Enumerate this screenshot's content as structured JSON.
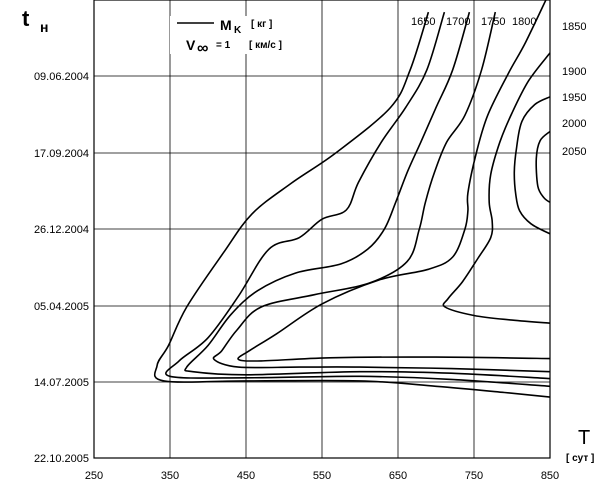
{
  "chart_data": {
    "type": "line",
    "xlabel": "T",
    "xunit": "[ сут ]",
    "ylabel": "t",
    "ylabel_sub": "н",
    "xlim": [
      250,
      850
    ],
    "x_ticks": [
      250,
      350,
      450,
      550,
      650,
      750,
      850
    ],
    "y_ticks": [
      "09.06.2004",
      "17.09.2004",
      "26.12.2004",
      "05.04.2005",
      "14.07.2005",
      "22.10.2005"
    ],
    "grid": true,
    "legend": {
      "line_label": "M",
      "line_label_sub": "K",
      "line_unit": "[ кг ]",
      "param_label": "V",
      "param_symbol": "∞",
      "param_value": "= 1",
      "param_unit": "[ км/с ]"
    },
    "level_labels": [
      "1650",
      "1700",
      "1750",
      "1800",
      "1850",
      "1900",
      "1950",
      "2000",
      "2050"
    ],
    "series": [
      {
        "name": "1650",
        "points": [
          [
            690,
            "2004-03-18"
          ],
          [
            666,
            "2004-06-01"
          ],
          [
            640,
            "2004-07-20"
          ],
          [
            568,
            "2004-09-17"
          ],
          [
            510,
            "2004-10-26"
          ],
          [
            458,
            "2004-12-05"
          ],
          [
            420,
            "2005-01-25"
          ],
          [
            372,
            "2005-04-05"
          ],
          [
            348,
            "2005-05-25"
          ],
          [
            333,
            "2005-06-20"
          ],
          [
            342,
            "2005-07-10"
          ],
          [
            450,
            "2005-07-10"
          ],
          [
            600,
            "2005-07-10"
          ],
          [
            700,
            "2005-07-17"
          ],
          [
            790,
            "2005-07-25"
          ],
          [
            850,
            "2005-07-31"
          ]
        ]
      },
      {
        "name": "1700",
        "points": [
          [
            711,
            "2004-03-18"
          ],
          [
            688,
            "2004-06-01"
          ],
          [
            660,
            "2004-07-20"
          ],
          [
            628,
            "2004-09-03"
          ],
          [
            598,
            "2004-10-25"
          ],
          [
            582,
            "2004-11-30"
          ],
          [
            550,
            "2004-12-12"
          ],
          [
            520,
            "2005-01-05"
          ],
          [
            480,
            "2005-01-20"
          ],
          [
            440,
            "2005-03-22"
          ],
          [
            400,
            "2005-05-15"
          ],
          [
            362,
            "2005-06-14"
          ],
          [
            350,
            "2005-07-04"
          ],
          [
            450,
            "2005-07-06"
          ],
          [
            600,
            "2005-07-04"
          ],
          [
            720,
            "2005-07-08"
          ],
          [
            850,
            "2005-07-17"
          ]
        ]
      },
      {
        "name": "1750",
        "points": [
          [
            744,
            "2004-03-18"
          ],
          [
            722,
            "2004-06-01"
          ],
          [
            700,
            "2004-07-20"
          ],
          [
            680,
            "2004-09-03"
          ],
          [
            663,
            "2004-10-10"
          ],
          [
            647,
            "2004-11-20"
          ],
          [
            632,
            "2004-12-25"
          ],
          [
            610,
            "2005-01-20"
          ],
          [
            575,
            "2005-02-08"
          ],
          [
            515,
            "2005-02-20"
          ],
          [
            465,
            "2005-03-15"
          ],
          [
            430,
            "2005-04-15"
          ],
          [
            400,
            "2005-05-25"
          ],
          [
            372,
            "2005-06-22"
          ],
          [
            380,
            "2005-06-28"
          ],
          [
            450,
            "2005-07-02"
          ],
          [
            600,
            "2005-06-28"
          ],
          [
            720,
            "2005-06-30"
          ],
          [
            850,
            "2005-07-07"
          ]
        ]
      },
      {
        "name": "1800",
        "points": [
          [
            778,
            "2004-03-18"
          ],
          [
            760,
            "2004-06-01"
          ],
          [
            738,
            "2004-07-30"
          ],
          [
            714,
            "2004-09-03"
          ],
          [
            698,
            "2004-10-12"
          ],
          [
            686,
            "2004-11-20"
          ],
          [
            678,
            "2004-12-25"
          ],
          [
            662,
            "2005-02-05"
          ],
          [
            612,
            "2005-03-05"
          ],
          [
            540,
            "2005-03-20"
          ],
          [
            470,
            "2005-04-05"
          ],
          [
            438,
            "2005-05-05"
          ],
          [
            418,
            "2005-06-01"
          ],
          [
            408,
            "2005-06-12"
          ],
          [
            440,
            "2005-06-22"
          ],
          [
            520,
            "2005-06-22"
          ],
          [
            600,
            "2005-06-22"
          ],
          [
            720,
            "2005-06-24"
          ],
          [
            850,
            "2005-06-28"
          ]
        ]
      },
      {
        "name": "1850",
        "points": [
          [
            850,
            "2004-02-20"
          ],
          [
            818,
            "2004-04-26"
          ],
          [
            795,
            "2004-06-06"
          ],
          [
            768,
            "2004-07-30"
          ],
          [
            753,
            "2004-09-17"
          ],
          [
            742,
            "2004-11-08"
          ],
          [
            742,
            "2004-12-01"
          ],
          [
            738,
            "2004-12-25"
          ],
          [
            722,
            "2005-01-30"
          ],
          [
            690,
            "2005-02-15"
          ],
          [
            625,
            "2005-03-01"
          ],
          [
            550,
            "2005-04-01"
          ],
          [
            490,
            "2005-05-10"
          ],
          [
            454,
            "2005-06-01"
          ],
          [
            440,
            "2005-06-12"
          ],
          [
            470,
            "2005-06-14"
          ],
          [
            560,
            "2005-06-10"
          ],
          [
            700,
            "2005-06-09"
          ],
          [
            850,
            "2005-06-11"
          ]
        ]
      },
      {
        "name": "1900",
        "points": [
          [
            850,
            "2004-05-10"
          ],
          [
            822,
            "2004-06-15"
          ],
          [
            800,
            "2004-07-27"
          ],
          [
            784,
            "2004-09-03"
          ],
          [
            772,
            "2004-10-15"
          ],
          [
            770,
            "2004-11-20"
          ],
          [
            774,
            "2004-12-15"
          ],
          [
            772,
            "2005-01-05"
          ],
          [
            755,
            "2005-02-01"
          ],
          [
            735,
            "2005-03-03"
          ],
          [
            716,
            "2005-03-25"
          ],
          [
            712,
            "2005-04-05"
          ],
          [
            750,
            "2005-04-16"
          ],
          [
            800,
            "2005-04-22"
          ],
          [
            850,
            "2005-04-26"
          ]
        ]
      },
      {
        "name": "1950",
        "points": [
          [
            850,
            "2004-07-06"
          ],
          [
            830,
            "2004-07-16"
          ],
          [
            813,
            "2004-08-07"
          ],
          [
            806,
            "2004-09-10"
          ],
          [
            803,
            "2004-10-12"
          ],
          [
            805,
            "2004-11-10"
          ],
          [
            810,
            "2004-12-01"
          ],
          [
            825,
            "2004-12-18"
          ],
          [
            850,
            "2004-12-31"
          ]
        ]
      },
      {
        "name": "2000",
        "points": [
          [
            850,
            "2004-08-20"
          ],
          [
            837,
            "2004-09-01"
          ],
          [
            832,
            "2004-09-24"
          ],
          [
            834,
            "2004-10-30"
          ],
          [
            842,
            "2004-11-14"
          ],
          [
            850,
            "2004-11-20"
          ]
        ]
      }
    ]
  }
}
